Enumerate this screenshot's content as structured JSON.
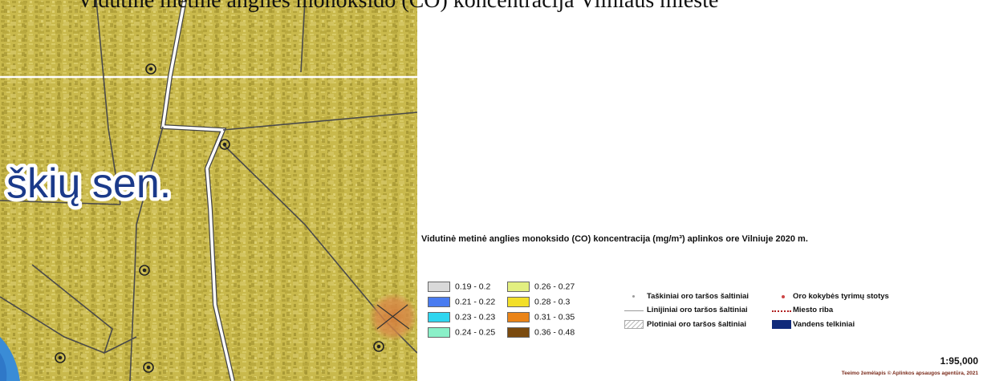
{
  "top_caption": "Vidutinė metinė anglies monoksido (CO) koncentracija Vilniaus mieste",
  "map": {
    "district_label": "škių sen.",
    "background_color": "#c8b84a",
    "road_color": "#4a4a4a"
  },
  "legend": {
    "title": "Vidutinė metinė anglies monoksido (CO) koncentracija (mg/m³) aplinkos ore Vilniuje 2020 m.",
    "classes": [
      {
        "label": "0.19 - 0.2",
        "color": "#d9d9d9"
      },
      {
        "label": "0.21 - 0.22",
        "color": "#4a7cf0"
      },
      {
        "label": "0.23 - 0.23",
        "color": "#2fd6f0"
      },
      {
        "label": "0.24 - 0.25",
        "color": "#8af0c8"
      },
      {
        "label": "0.26 - 0.27",
        "color": "#e2ef80"
      },
      {
        "label": "0.28 - 0.3",
        "color": "#f2df2a"
      },
      {
        "label": "0.31 - 0.35",
        "color": "#ea8418"
      },
      {
        "label": "0.36 - 0.48",
        "color": "#7a4a0e"
      }
    ],
    "symbols": [
      {
        "label": "Taškiniai oro taršos šaltiniai",
        "icon": "point-source-icon"
      },
      {
        "label": "Linijiniai oro taršos šaltiniai",
        "icon": "line-source-icon"
      },
      {
        "label": "Plotiniai oro taršos šaltiniai",
        "icon": "area-source-icon"
      },
      {
        "label": "Oro kokybės tyrimų stotys",
        "icon": "monitoring-station-icon"
      },
      {
        "label": "Miesto riba",
        "icon": "city-boundary-icon"
      },
      {
        "label": "Vandens telkiniai",
        "icon": "water-body-icon",
        "color": "#102a7a"
      }
    ]
  },
  "scale": "1:95,000",
  "credit": "Teeimo žemėlapis © Aplinkos apsaugos agentūra, 2021"
}
